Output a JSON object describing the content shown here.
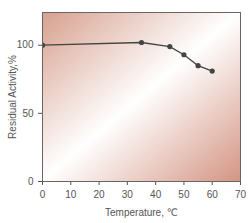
{
  "chart_data": {
    "type": "line",
    "x": [
      0,
      35,
      45,
      50,
      55,
      60
    ],
    "values": [
      100,
      102,
      99,
      93,
      85,
      81
    ],
    "x_label": "Temperature, ℃",
    "y_label": "Residual Activity,%",
    "xlim": [
      0,
      70
    ],
    "xticks": [
      0,
      10,
      20,
      30,
      40,
      50,
      60,
      70
    ],
    "ylim": [
      0,
      124
    ],
    "yticks": [
      0,
      50,
      100
    ],
    "color": "#444444",
    "marker": "circle",
    "line_style": "solid",
    "grid": false
  }
}
